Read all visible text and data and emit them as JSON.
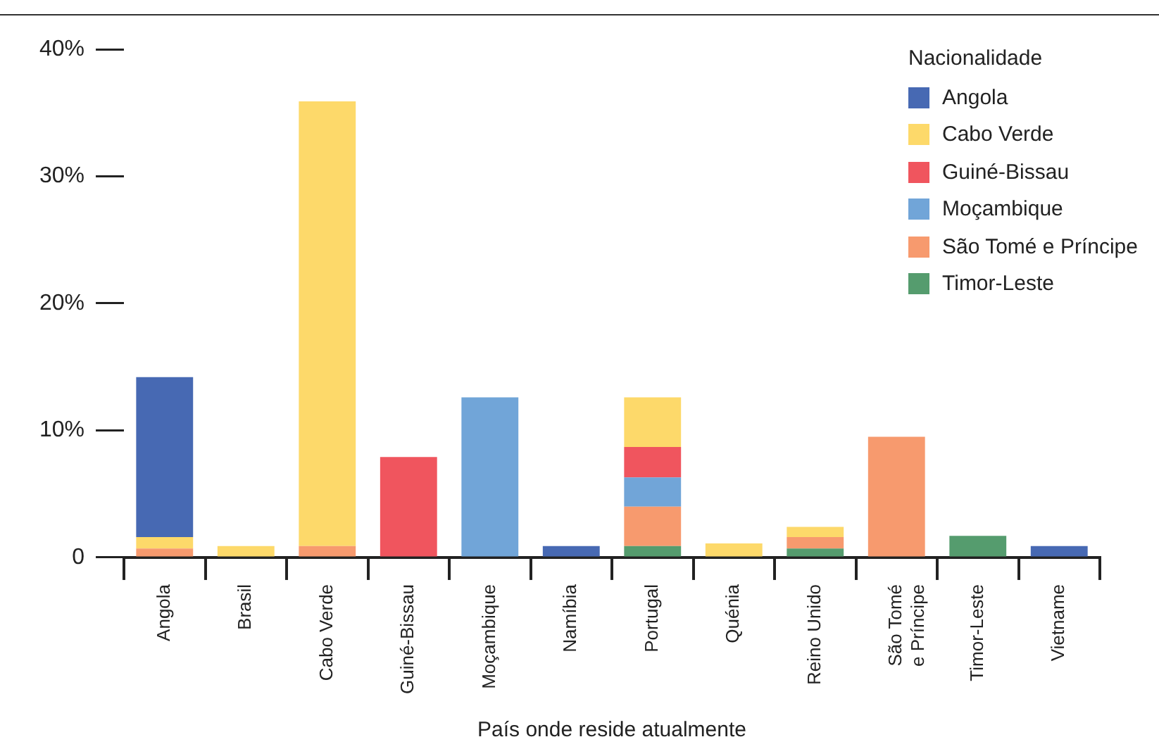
{
  "chart_data": {
    "type": "bar",
    "stacked": true,
    "xlabel": "País onde reside atualmente",
    "legend_title": "Nacionalidade",
    "legend": "top right",
    "grid": false,
    "categories": [
      "Angola",
      "Brasil",
      "Cabo Verde",
      "Guiné-Bissau",
      "Moçambique",
      "Namíbia",
      "Portugal",
      "Quénia",
      "Reino Unido",
      "São Tomé e Príncipe",
      "Timor-Leste",
      "Vietname"
    ],
    "series": [
      {
        "name": "Timor-Leste",
        "color": "#559c6e",
        "values": [
          null,
          null,
          null,
          null,
          null,
          null,
          0.9,
          null,
          0.7,
          null,
          1.7,
          null
        ]
      },
      {
        "name": "São Tomé e Príncipe",
        "color": "#f79a6e",
        "values": [
          0.7,
          null,
          0.9,
          null,
          null,
          null,
          3.1,
          null,
          0.9,
          9.5,
          null,
          null
        ]
      },
      {
        "name": "Moçambique",
        "color": "#71a5d8",
        "values": [
          null,
          null,
          null,
          null,
          12.6,
          null,
          2.3,
          null,
          null,
          null,
          null,
          null
        ]
      },
      {
        "name": "Guiné-Bissau",
        "color": "#f0555e",
        "values": [
          null,
          null,
          null,
          7.9,
          null,
          null,
          2.4,
          null,
          null,
          null,
          null,
          null
        ]
      },
      {
        "name": "Cabo Verde",
        "color": "#fdd96a",
        "values": [
          0.9,
          0.9,
          35.0,
          null,
          null,
          null,
          3.9,
          1.1,
          0.8,
          null,
          null,
          null
        ]
      },
      {
        "name": "Angola",
        "color": "#4769b3",
        "values": [
          12.6,
          null,
          null,
          null,
          null,
          0.9,
          null,
          null,
          null,
          null,
          null,
          0.9
        ]
      }
    ],
    "ylim": [
      0,
      40
    ],
    "yticks": [
      {
        "value": 0,
        "label": "0"
      },
      {
        "value": 10,
        "label": "10%"
      },
      {
        "value": 20,
        "label": "20%"
      },
      {
        "value": 30,
        "label": "30%"
      },
      {
        "value": 40,
        "label": "40%"
      }
    ]
  }
}
